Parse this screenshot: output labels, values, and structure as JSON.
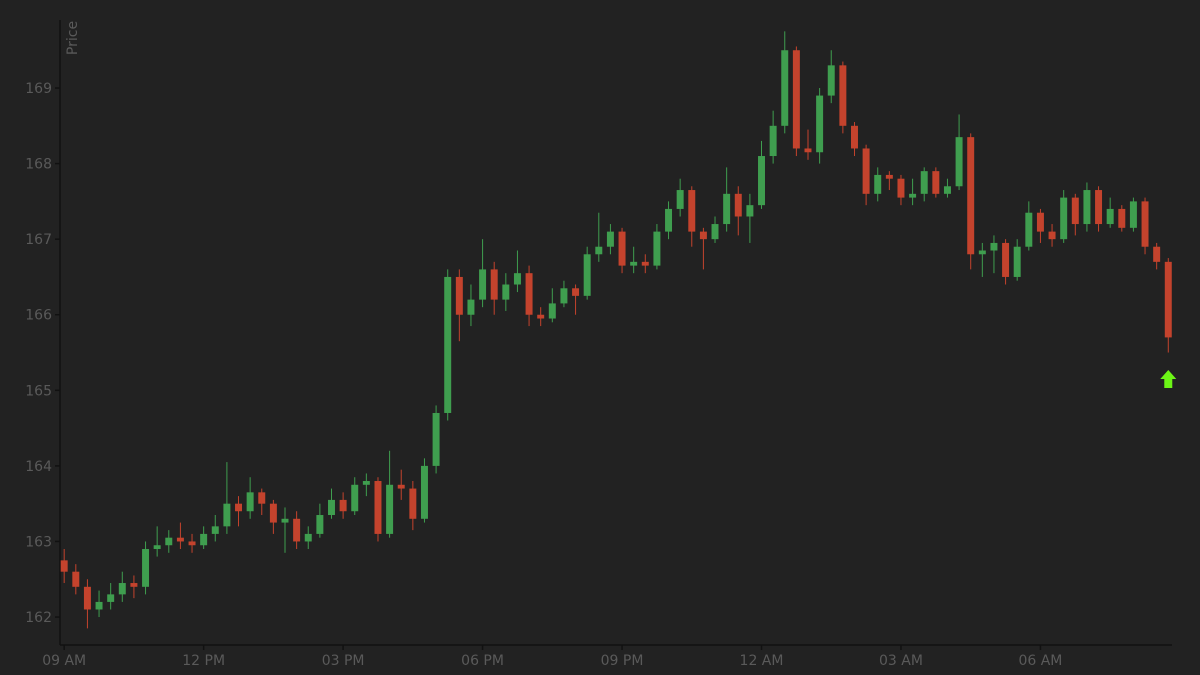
{
  "chart_data": {
    "type": "candlestick",
    "y_label": "Price",
    "x": [
      0,
      0.25,
      0.5,
      0.75,
      1,
      1.25,
      1.5,
      1.75,
      2,
      2.25,
      2.5,
      2.75,
      3,
      3.25,
      3.5,
      3.75,
      4,
      4.25,
      4.5,
      4.75,
      5,
      5.25,
      5.5,
      5.75,
      6,
      6.25,
      6.5,
      6.75,
      7,
      7.25,
      7.5,
      7.75,
      8,
      8.25,
      8.5,
      8.75,
      9,
      9.25,
      9.5,
      9.75,
      10,
      10.25,
      10.5,
      10.75,
      11,
      11.25,
      11.5,
      11.75,
      12,
      12.25,
      12.5,
      12.75,
      13,
      13.25,
      13.5,
      13.75,
      14,
      14.25,
      14.5,
      14.75,
      15,
      15.25,
      15.5,
      15.75,
      16,
      16.25,
      16.5,
      16.75,
      17,
      17.25,
      17.5,
      17.75,
      18,
      18.25,
      18.5,
      18.75,
      19,
      19.25,
      19.5,
      19.75,
      20,
      20.25,
      20.5,
      20.75,
      21,
      21.25,
      21.5,
      21.75,
      22,
      22.25,
      22.5,
      22.75,
      23,
      23.25,
      23.5,
      23.75
    ],
    "open": [
      162.75,
      162.6,
      162.4,
      162.1,
      162.2,
      162.3,
      162.45,
      162.4,
      162.9,
      162.95,
      163.05,
      163.0,
      162.95,
      163.1,
      163.2,
      163.5,
      163.4,
      163.65,
      163.5,
      163.25,
      163.3,
      163.0,
      163.1,
      163.35,
      163.55,
      163.4,
      163.75,
      163.8,
      163.1,
      163.75,
      163.7,
      163.3,
      164.0,
      164.7,
      166.5,
      166.0,
      166.2,
      166.6,
      166.2,
      166.4,
      166.55,
      166.0,
      165.95,
      166.15,
      166.35,
      166.25,
      166.8,
      166.9,
      167.1,
      166.65,
      166.7,
      166.65,
      167.1,
      167.4,
      167.65,
      167.1,
      167.0,
      167.2,
      167.6,
      167.3,
      167.45,
      168.1,
      168.5,
      169.5,
      168.2,
      168.15,
      168.9,
      169.3,
      168.5,
      168.2,
      167.6,
      167.85,
      167.8,
      167.55,
      167.6,
      167.9,
      167.6,
      167.7,
      168.35,
      166.8,
      166.85,
      166.95,
      166.5,
      166.9,
      167.35,
      167.1,
      167.0,
      167.55,
      167.2,
      167.65,
      167.2,
      167.4,
      167.15,
      167.5,
      166.9,
      166.7
    ],
    "high": [
      162.9,
      162.7,
      162.5,
      162.35,
      162.45,
      162.6,
      162.55,
      163.0,
      163.2,
      163.15,
      163.25,
      163.1,
      163.2,
      163.35,
      164.05,
      163.6,
      163.85,
      163.7,
      163.55,
      163.45,
      163.4,
      163.2,
      163.5,
      163.7,
      163.65,
      163.85,
      163.9,
      163.85,
      164.2,
      163.95,
      163.8,
      164.1,
      164.8,
      166.6,
      166.6,
      166.4,
      167.0,
      166.7,
      166.55,
      166.85,
      166.65,
      166.1,
      166.35,
      166.45,
      166.4,
      166.9,
      167.35,
      167.2,
      167.15,
      166.9,
      166.8,
      167.2,
      167.5,
      167.8,
      167.7,
      167.15,
      167.3,
      167.95,
      167.7,
      167.6,
      168.3,
      168.7,
      169.75,
      169.55,
      168.45,
      169.0,
      169.5,
      169.35,
      168.55,
      168.25,
      167.95,
      167.9,
      167.85,
      167.8,
      167.95,
      167.95,
      167.8,
      168.65,
      168.4,
      166.95,
      167.05,
      167.0,
      167.0,
      167.5,
      167.4,
      167.2,
      167.65,
      167.6,
      167.75,
      167.7,
      167.55,
      167.45,
      167.55,
      167.55,
      166.95,
      166.75
    ],
    "low": [
      162.45,
      162.3,
      161.85,
      162.0,
      162.1,
      162.2,
      162.25,
      162.3,
      162.8,
      162.85,
      162.9,
      162.85,
      162.9,
      163.0,
      163.1,
      163.2,
      163.3,
      163.35,
      163.1,
      162.85,
      162.9,
      162.9,
      163.05,
      163.3,
      163.3,
      163.35,
      163.6,
      163.0,
      163.05,
      163.55,
      163.15,
      163.25,
      163.9,
      164.6,
      165.65,
      165.85,
      166.1,
      166.0,
      166.05,
      166.3,
      165.85,
      165.85,
      165.9,
      166.1,
      166.0,
      166.2,
      166.7,
      166.8,
      166.55,
      166.55,
      166.55,
      166.6,
      167.0,
      167.3,
      166.9,
      166.6,
      166.95,
      167.1,
      167.05,
      166.95,
      167.4,
      168.0,
      168.4,
      168.1,
      168.05,
      168.0,
      168.8,
      168.4,
      168.1,
      167.45,
      167.5,
      167.65,
      167.45,
      167.45,
      167.5,
      167.55,
      167.55,
      167.65,
      166.6,
      166.5,
      166.55,
      166.4,
      166.45,
      166.85,
      166.95,
      166.9,
      166.95,
      167.05,
      167.1,
      167.1,
      167.15,
      167.1,
      167.1,
      166.8,
      166.6,
      165.5
    ],
    "close": [
      162.6,
      162.4,
      162.1,
      162.2,
      162.3,
      162.45,
      162.4,
      162.9,
      162.95,
      163.05,
      163.0,
      162.95,
      163.1,
      163.2,
      163.5,
      163.4,
      163.65,
      163.5,
      163.25,
      163.3,
      163.0,
      163.1,
      163.35,
      163.55,
      163.4,
      163.75,
      163.8,
      163.1,
      163.75,
      163.7,
      163.3,
      164.0,
      164.7,
      166.5,
      166.0,
      166.2,
      166.6,
      166.2,
      166.4,
      166.55,
      166.0,
      165.95,
      166.15,
      166.35,
      166.25,
      166.8,
      166.9,
      167.1,
      166.65,
      166.7,
      166.65,
      167.1,
      167.4,
      167.65,
      167.1,
      167.0,
      167.2,
      167.6,
      167.3,
      167.45,
      168.1,
      168.5,
      169.5,
      168.2,
      168.15,
      168.9,
      169.3,
      168.5,
      168.2,
      167.6,
      167.85,
      167.8,
      167.55,
      167.6,
      167.9,
      167.6,
      167.7,
      168.35,
      166.8,
      166.85,
      166.95,
      166.5,
      166.9,
      167.35,
      167.1,
      167.0,
      167.55,
      167.2,
      167.65,
      167.2,
      167.4,
      167.15,
      167.5,
      166.9,
      166.7,
      165.7
    ],
    "up_color": "#3f9e4f",
    "down_color": "#c4432d",
    "marker": {
      "x": 23.75,
      "y": 165.15,
      "color": "#6cf516"
    },
    "xlim": [
      -0.09,
      23.83
    ],
    "ylim": [
      161.63,
      169.9
    ],
    "xticks": [
      {
        "value": 0,
        "label": "09 AM"
      },
      {
        "value": 3,
        "label": "12 PM"
      },
      {
        "value": 6,
        "label": "03 PM"
      },
      {
        "value": 9,
        "label": "06 PM"
      },
      {
        "value": 12,
        "label": "09 PM"
      },
      {
        "value": 15,
        "label": "12 AM"
      },
      {
        "value": 18,
        "label": "03 AM"
      },
      {
        "value": 21,
        "label": "06 AM"
      }
    ],
    "yticks": [
      162,
      163,
      164,
      165,
      166,
      167,
      168,
      169
    ]
  }
}
